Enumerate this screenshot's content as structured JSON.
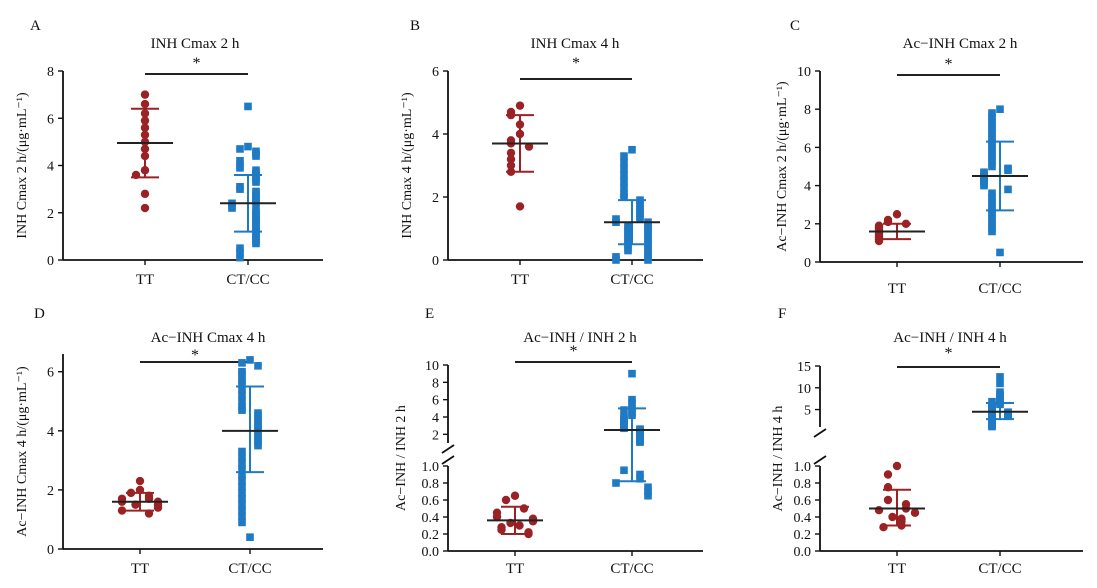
{
  "colors": {
    "tt": "#9b2224",
    "ctcc": "#1f7ac4",
    "mean": "#222222",
    "axis": "#111111"
  },
  "categories": [
    "TT",
    "CT/CC"
  ],
  "chart_data": [
    {
      "type": "scatter",
      "panel": "A",
      "title": "INH Cmax 2 h",
      "ylabel": "INH Cmax 2 h/(μg·mL⁻¹)",
      "ylim": [
        0,
        8
      ],
      "yticks": [
        "0",
        "2",
        "4",
        "6",
        "8"
      ],
      "significance": "*",
      "groups": [
        {
          "name": "TT",
          "mean": 4.95,
          "err": [
            3.5,
            6.4
          ],
          "values": [
            7.0,
            6.6,
            6.2,
            5.9,
            5.6,
            5.3,
            5.0,
            4.7,
            4.4,
            3.8,
            3.6,
            2.8,
            2.2
          ]
        },
        {
          "name": "CT/CC",
          "mean": 2.4,
          "err": [
            1.2,
            3.6
          ],
          "values": [
            6.5,
            4.8,
            4.7,
            4.6,
            4.5,
            4.4,
            4.2,
            4.0,
            3.9,
            3.8,
            3.7,
            3.6,
            3.5,
            3.4,
            3.3,
            3.1,
            3.0,
            2.9,
            2.8,
            2.7,
            2.6,
            2.5,
            2.4,
            2.4,
            2.3,
            2.2,
            2.1,
            2.0,
            1.9,
            1.8,
            1.7,
            1.6,
            1.5,
            1.4,
            1.3,
            1.2,
            1.1,
            1.0,
            0.9,
            0.8,
            0.7,
            0.5,
            0.3,
            0.1
          ]
        }
      ]
    },
    {
      "type": "scatter",
      "panel": "B",
      "title": "INH Cmax 4 h",
      "ylabel": "INH Cmax 4 h/(μg·mL⁻¹)",
      "ylim": [
        0,
        6
      ],
      "yticks": [
        "0",
        "2",
        "4",
        "6"
      ],
      "significance": "*",
      "groups": [
        {
          "name": "TT",
          "mean": 3.7,
          "err": [
            2.8,
            4.6
          ],
          "values": [
            4.9,
            4.7,
            4.6,
            4.3,
            4.0,
            3.8,
            3.7,
            3.6,
            3.4,
            3.2,
            3.0,
            2.8,
            1.7
          ]
        },
        {
          "name": "CT/CC",
          "mean": 1.2,
          "err": [
            0.5,
            1.9
          ],
          "values": [
            3.5,
            3.3,
            3.1,
            2.9,
            2.7,
            2.5,
            2.3,
            2.1,
            2.0,
            1.9,
            1.8,
            1.7,
            1.6,
            1.5,
            1.4,
            1.3,
            1.3,
            1.2,
            1.2,
            1.1,
            1.1,
            1.0,
            1.0,
            0.9,
            0.9,
            0.8,
            0.8,
            0.7,
            0.7,
            0.6,
            0.6,
            0.5,
            0.5,
            0.4,
            0.4,
            0.3,
            0.3,
            0.2,
            0.1,
            0.1,
            0.0,
            0.0
          ]
        }
      ]
    },
    {
      "type": "scatter",
      "panel": "C",
      "title": "Ac−INH Cmax 2 h",
      "ylabel": "Ac−INH Cmax 2 h/(μg·mL⁻¹)",
      "ylim": [
        0,
        10
      ],
      "yticks": [
        "0",
        "2",
        "4",
        "6",
        "8",
        "10"
      ],
      "significance": "*",
      "groups": [
        {
          "name": "TT",
          "mean": 1.6,
          "err": [
            1.2,
            2.0
          ],
          "values": [
            2.5,
            2.2,
            2.1,
            2.0,
            1.9,
            1.8,
            1.7,
            1.6,
            1.5,
            1.4,
            1.3,
            1.2,
            1.1
          ]
        },
        {
          "name": "CT/CC",
          "mean": 4.5,
          "err": [
            2.7,
            6.3
          ],
          "values": [
            8.0,
            7.8,
            7.6,
            7.4,
            7.2,
            7.0,
            6.8,
            6.6,
            6.4,
            6.2,
            6.0,
            5.8,
            5.6,
            5.4,
            5.2,
            5.0,
            4.9,
            4.8,
            4.7,
            4.6,
            4.5,
            4.4,
            4.3,
            4.2,
            4.1,
            4.0,
            3.8,
            3.6,
            3.4,
            3.2,
            3.0,
            2.8,
            2.6,
            2.4,
            2.2,
            2.0,
            1.8,
            1.6,
            0.5
          ]
        }
      ]
    },
    {
      "type": "scatter",
      "panel": "D",
      "title": "Ac−INH Cmax 4 h",
      "ylabel": "Ac−INH Cmax 4 h/(μg·mL⁻¹)",
      "ylim": [
        0,
        6.6
      ],
      "yticks": [
        "0",
        "2",
        "4",
        "6"
      ],
      "significance": "*",
      "groups": [
        {
          "name": "TT",
          "mean": 1.6,
          "err": [
            1.3,
            1.9
          ],
          "values": [
            2.3,
            2.0,
            1.9,
            1.8,
            1.7,
            1.7,
            1.6,
            1.6,
            1.5,
            1.5,
            1.4,
            1.3,
            1.2
          ]
        },
        {
          "name": "CT/CC",
          "mean": 4.0,
          "err": [
            2.6,
            5.5
          ],
          "values": [
            6.4,
            6.3,
            6.2,
            6.0,
            5.9,
            5.7,
            5.6,
            5.4,
            5.2,
            5.0,
            4.8,
            4.7,
            4.6,
            4.5,
            4.4,
            4.3,
            4.2,
            4.1,
            4.0,
            3.9,
            3.8,
            3.7,
            3.6,
            3.5,
            3.3,
            3.1,
            2.9,
            2.7,
            2.5,
            2.3,
            2.1,
            1.9,
            1.7,
            1.5,
            1.3,
            1.1,
            0.9,
            0.4
          ]
        }
      ]
    },
    {
      "type": "scatter",
      "panel": "E",
      "title": "Ac−INH / INH 2 h",
      "ylabel": "Ac−INH / INH 2 h",
      "broken_axis": true,
      "lower_ylim": [
        0,
        1.0
      ],
      "lower_yticks": [
        "0.0",
        "0.2",
        "0.4",
        "0.6",
        "0.8",
        "1.0"
      ],
      "upper_ylim": [
        1,
        10
      ],
      "upper_yticks": [
        "2",
        "4",
        "6",
        "8",
        "10"
      ],
      "significance": "*",
      "groups": [
        {
          "name": "TT",
          "mean": 0.36,
          "err": [
            0.2,
            0.52
          ],
          "values": [
            0.65,
            0.6,
            0.5,
            0.45,
            0.4,
            0.38,
            0.35,
            0.33,
            0.3,
            0.28,
            0.25,
            0.22,
            0.2
          ]
        },
        {
          "name": "CT/CC",
          "mean": 2.5,
          "err": [
            0.82,
            5.0
          ],
          "values": [
            9.0,
            6.0,
            5.5,
            5.0,
            4.8,
            4.5,
            4.2,
            4.0,
            3.8,
            3.6,
            3.4,
            3.2,
            3.0,
            2.8,
            2.7,
            2.6,
            2.5,
            2.4,
            2.3,
            2.2,
            2.1,
            2.0,
            1.9,
            1.8,
            1.7,
            1.6,
            1.5,
            1.4,
            1.3,
            1.2,
            1.1,
            0.95,
            0.9,
            0.85,
            0.8,
            0.75,
            0.7,
            0.65
          ]
        }
      ]
    },
    {
      "type": "scatter",
      "panel": "F",
      "title": "Ac−INH / INH 4 h",
      "ylabel": "Ac−INH / INH 4 h",
      "broken_axis": true,
      "lower_ylim": [
        0,
        1.0
      ],
      "lower_yticks": [
        "0.0",
        "0.2",
        "0.4",
        "0.6",
        "0.8",
        "1.0"
      ],
      "upper_ylim": [
        1,
        15
      ],
      "upper_yticks": [
        "5",
        "10",
        "15"
      ],
      "significance": "*",
      "groups": [
        {
          "name": "TT",
          "mean": 0.5,
          "err": [
            0.3,
            0.72
          ],
          "values": [
            1.0,
            0.9,
            0.75,
            0.6,
            0.55,
            0.5,
            0.48,
            0.45,
            0.4,
            0.38,
            0.35,
            0.3,
            0.28
          ]
        },
        {
          "name": "CT/CC",
          "mean": 4.5,
          "err": [
            2.8,
            6.5
          ],
          "values": [
            12.5,
            11.0,
            9.0,
            8.5,
            8.0,
            7.5,
            7.0,
            6.8,
            6.5,
            6.2,
            6.0,
            5.8,
            5.6,
            5.4,
            5.2,
            5.0,
            4.8,
            4.6,
            4.5,
            4.4,
            4.3,
            4.2,
            4.1,
            4.0,
            3.9,
            3.8,
            3.6,
            3.4,
            3.2,
            3.0,
            2.8,
            2.6,
            2.4,
            2.2,
            2.0,
            1.8,
            1.6,
            1.4,
            1.2,
            1.1
          ]
        }
      ]
    }
  ]
}
